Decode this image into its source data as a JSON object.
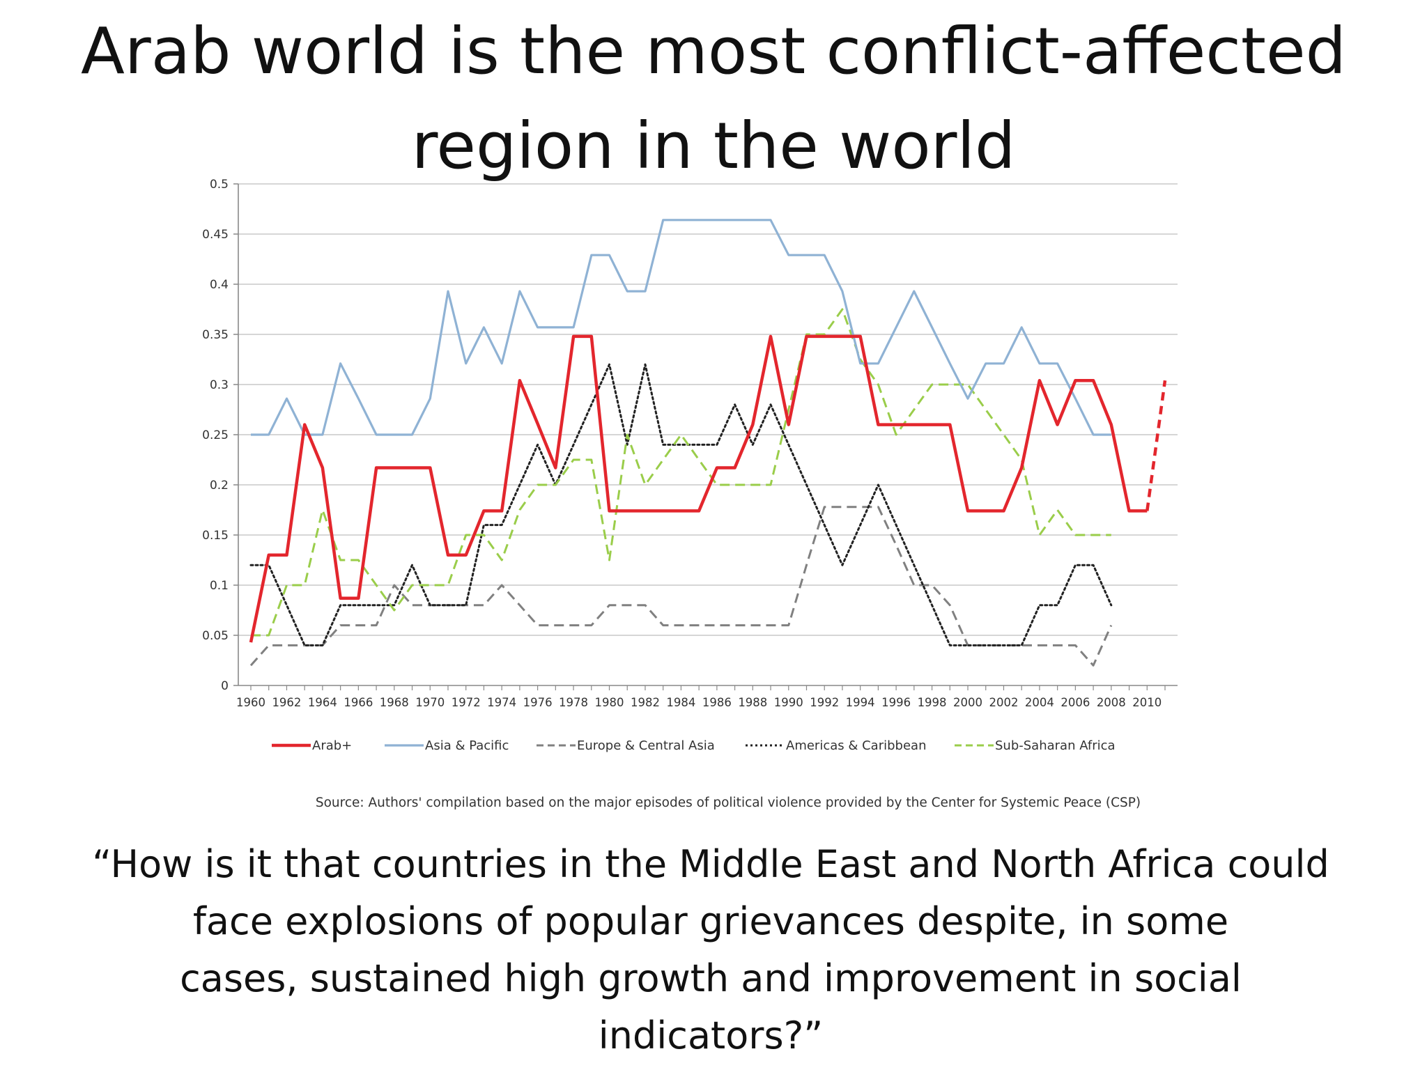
{
  "slide": {
    "title_line1": "Arab world is the most conflict-affected",
    "title_line2": "region in the world",
    "quote_line1": "“How is it that countries in the Middle East and North Africa could",
    "quote_line2": "face explosions of popular grievances despite, in some",
    "quote_line3": "cases, sustained high growth and improvement in social",
    "quote_line4": "indicators?”"
  },
  "chart_data": {
    "type": "line",
    "title": "",
    "xlabel": "",
    "ylabel": "",
    "source": "Source:  Authors' compilation based on the major episodes of political violence provided by the Center for Systemic Peace (CSP)",
    "x_range": [
      1960,
      2011
    ],
    "ylim": [
      0,
      0.5
    ],
    "y_ticks": [
      0,
      0.05,
      0.1,
      0.15,
      0.2,
      0.25,
      0.3,
      0.35,
      0.4,
      0.45,
      0.5
    ],
    "y_tick_labels": [
      "0",
      "0.05",
      "0.1",
      "0.15",
      "0.2",
      "0.25",
      "0.3",
      "0.35",
      "0.4",
      "0.45",
      "0.5"
    ],
    "x_tick_labels": [
      "1960",
      "1962",
      "1964",
      "1966",
      "1968",
      "1970",
      "1972",
      "1974",
      "1976",
      "1978",
      "1980",
      "1982",
      "1984",
      "1986",
      "1988",
      "1990",
      "1992",
      "1994",
      "1996",
      "1998",
      "2000",
      "2002",
      "2004",
      "2006",
      "2008",
      "2010"
    ],
    "grid": true,
    "legend_position": "bottom",
    "series": [
      {
        "name": "Arab+",
        "color": "#e3262d",
        "style": "solid",
        "x": [
          1960,
          1961,
          1962,
          1963,
          1964,
          1965,
          1966,
          1967,
          1968,
          1969,
          1970,
          1971,
          1972,
          1973,
          1974,
          1975,
          1976,
          1977,
          1978,
          1979,
          1980,
          1981,
          1982,
          1983,
          1984,
          1985,
          1986,
          1987,
          1988,
          1989,
          1990,
          1991,
          1992,
          1993,
          1994,
          1995,
          1996,
          1997,
          1998,
          1999,
          2000,
          2001,
          2002,
          2003,
          2004,
          2005,
          2006,
          2007,
          2008,
          2009,
          2010
        ],
        "values": [
          0.043,
          0.13,
          0.13,
          0.26,
          0.217,
          0.087,
          0.087,
          0.217,
          0.217,
          0.217,
          0.217,
          0.13,
          0.13,
          0.174,
          0.174,
          0.304,
          0.261,
          0.217,
          0.348,
          0.348,
          0.174,
          0.174,
          0.174,
          0.174,
          0.174,
          0.174,
          0.217,
          0.217,
          0.26,
          0.348,
          0.26,
          0.348,
          0.348,
          0.348,
          0.348,
          0.26,
          0.26,
          0.26,
          0.26,
          0.26,
          0.174,
          0.174,
          0.174,
          0.217,
          0.304,
          0.26,
          0.304,
          0.304,
          0.26,
          0.174,
          0.174
        ],
        "projection": {
          "x": [
            2010,
            2011
          ],
          "values": [
            0.174,
            0.304
          ]
        }
      },
      {
        "name": "Asia & Pacific",
        "color": "#8fb2d4",
        "style": "solid",
        "x": [
          1960,
          1961,
          1962,
          1963,
          1964,
          1965,
          1966,
          1967,
          1968,
          1969,
          1970,
          1971,
          1972,
          1973,
          1974,
          1975,
          1976,
          1977,
          1978,
          1979,
          1980,
          1981,
          1982,
          1983,
          1984,
          1985,
          1986,
          1987,
          1988,
          1989,
          1990,
          1991,
          1992,
          1993,
          1994,
          1995,
          1996,
          1997,
          1998,
          1999,
          2000,
          2001,
          2002,
          2003,
          2004,
          2005,
          2006,
          2007,
          2008
        ],
        "values": [
          0.25,
          0.25,
          0.286,
          0.25,
          0.25,
          0.321,
          0.286,
          0.25,
          0.25,
          0.25,
          0.286,
          0.393,
          0.321,
          0.357,
          0.321,
          0.393,
          0.357,
          0.357,
          0.357,
          0.429,
          0.429,
          0.393,
          0.393,
          0.464,
          0.464,
          0.464,
          0.464,
          0.464,
          0.464,
          0.464,
          0.429,
          0.429,
          0.429,
          0.393,
          0.321,
          0.321,
          0.357,
          0.393,
          0.357,
          0.321,
          0.286,
          0.321,
          0.321,
          0.357,
          0.321,
          0.321,
          0.286,
          0.25,
          0.25
        ]
      },
      {
        "name": "Europe & Central Asia",
        "color": "#808080",
        "style": "dashed",
        "x": [
          1960,
          1961,
          1962,
          1963,
          1964,
          1965,
          1966,
          1967,
          1968,
          1969,
          1970,
          1971,
          1972,
          1973,
          1974,
          1975,
          1976,
          1977,
          1978,
          1979,
          1980,
          1981,
          1982,
          1983,
          1984,
          1985,
          1986,
          1987,
          1988,
          1989,
          1990,
          1991,
          1992,
          1993,
          1994,
          1995,
          1996,
          1997,
          1998,
          1999,
          2000,
          2001,
          2002,
          2003,
          2004,
          2005,
          2006,
          2007,
          2008
        ],
        "values": [
          0.02,
          0.04,
          0.04,
          0.04,
          0.04,
          0.06,
          0.06,
          0.06,
          0.1,
          0.08,
          0.08,
          0.08,
          0.08,
          0.08,
          0.1,
          0.08,
          0.06,
          0.06,
          0.06,
          0.06,
          0.08,
          0.08,
          0.08,
          0.06,
          0.06,
          0.06,
          0.06,
          0.06,
          0.06,
          0.06,
          0.06,
          0.12,
          0.178,
          0.178,
          0.178,
          0.178,
          0.14,
          0.1,
          0.1,
          0.08,
          0.04,
          0.04,
          0.04,
          0.04,
          0.04,
          0.04,
          0.04,
          0.02,
          0.06
        ]
      },
      {
        "name": "Americas & Caribbean",
        "color": "#222222",
        "style": "dotted",
        "x": [
          1960,
          1961,
          1962,
          1963,
          1964,
          1965,
          1966,
          1967,
          1968,
          1969,
          1970,
          1971,
          1972,
          1973,
          1974,
          1975,
          1976,
          1977,
          1978,
          1979,
          1980,
          1981,
          1982,
          1983,
          1984,
          1985,
          1986,
          1987,
          1988,
          1989,
          1990,
          1991,
          1992,
          1993,
          1994,
          1995,
          1996,
          1997,
          1998,
          1999,
          2000,
          2001,
          2002,
          2003,
          2004,
          2005,
          2006,
          2007,
          2008
        ],
        "values": [
          0.12,
          0.12,
          0.08,
          0.04,
          0.04,
          0.08,
          0.08,
          0.08,
          0.08,
          0.12,
          0.08,
          0.08,
          0.08,
          0.16,
          0.16,
          0.2,
          0.24,
          0.2,
          0.24,
          0.28,
          0.32,
          0.24,
          0.32,
          0.24,
          0.24,
          0.24,
          0.24,
          0.28,
          0.24,
          0.28,
          0.24,
          0.2,
          0.16,
          0.12,
          0.16,
          0.2,
          0.16,
          0.12,
          0.08,
          0.04,
          0.04,
          0.04,
          0.04,
          0.04,
          0.08,
          0.08,
          0.12,
          0.12,
          0.08
        ]
      },
      {
        "name": "Sub-Saharan Africa",
        "color": "#9acd4a",
        "style": "dashed",
        "x": [
          1960,
          1961,
          1962,
          1963,
          1964,
          1965,
          1966,
          1967,
          1968,
          1969,
          1970,
          1971,
          1972,
          1973,
          1974,
          1975,
          1976,
          1977,
          1978,
          1979,
          1980,
          1981,
          1982,
          1983,
          1984,
          1985,
          1986,
          1987,
          1988,
          1989,
          1990,
          1991,
          1992,
          1993,
          1994,
          1995,
          1996,
          1997,
          1998,
          1999,
          2000,
          2001,
          2002,
          2003,
          2004,
          2005,
          2006,
          2007,
          2008
        ],
        "values": [
          0.05,
          0.05,
          0.1,
          0.1,
          0.175,
          0.125,
          0.125,
          0.1,
          0.075,
          0.1,
          0.1,
          0.1,
          0.15,
          0.15,
          0.125,
          0.175,
          0.2,
          0.2,
          0.225,
          0.225,
          0.125,
          0.25,
          0.2,
          0.225,
          0.25,
          0.225,
          0.2,
          0.2,
          0.2,
          0.2,
          0.275,
          0.35,
          0.35,
          0.375,
          0.325,
          0.3,
          0.25,
          0.275,
          0.3,
          0.3,
          0.3,
          0.275,
          0.25,
          0.225,
          0.15,
          0.175,
          0.15,
          0.15,
          0.15
        ]
      }
    ]
  }
}
